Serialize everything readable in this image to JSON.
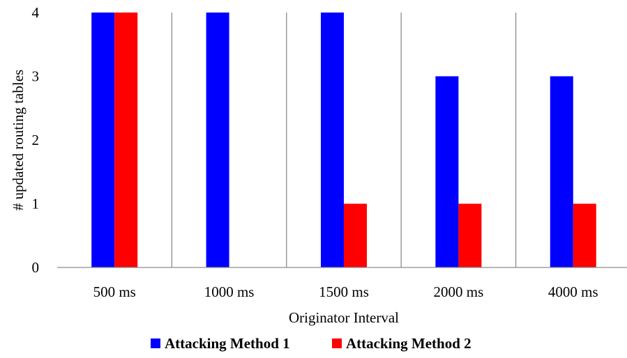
{
  "chart_data": {
    "type": "bar",
    "categories": [
      "500 ms",
      "1000 ms",
      "1500 ms",
      "2000 ms",
      "4000 ms"
    ],
    "series": [
      {
        "name": "Attacking Method 1",
        "color": "#0000ff",
        "values": [
          4,
          4,
          4,
          3,
          3
        ]
      },
      {
        "name": "Attacking Method 2",
        "color": "#ff0000",
        "values": [
          4,
          0,
          1,
          1,
          1
        ]
      }
    ],
    "xlabel": "Originator Interval",
    "ylabel": "# updated routing tables",
    "ylim": [
      0,
      4
    ],
    "yticks": [
      0,
      1,
      2,
      3,
      4
    ],
    "grid": "vertical separators between categories",
    "legend": "bottom-center"
  }
}
